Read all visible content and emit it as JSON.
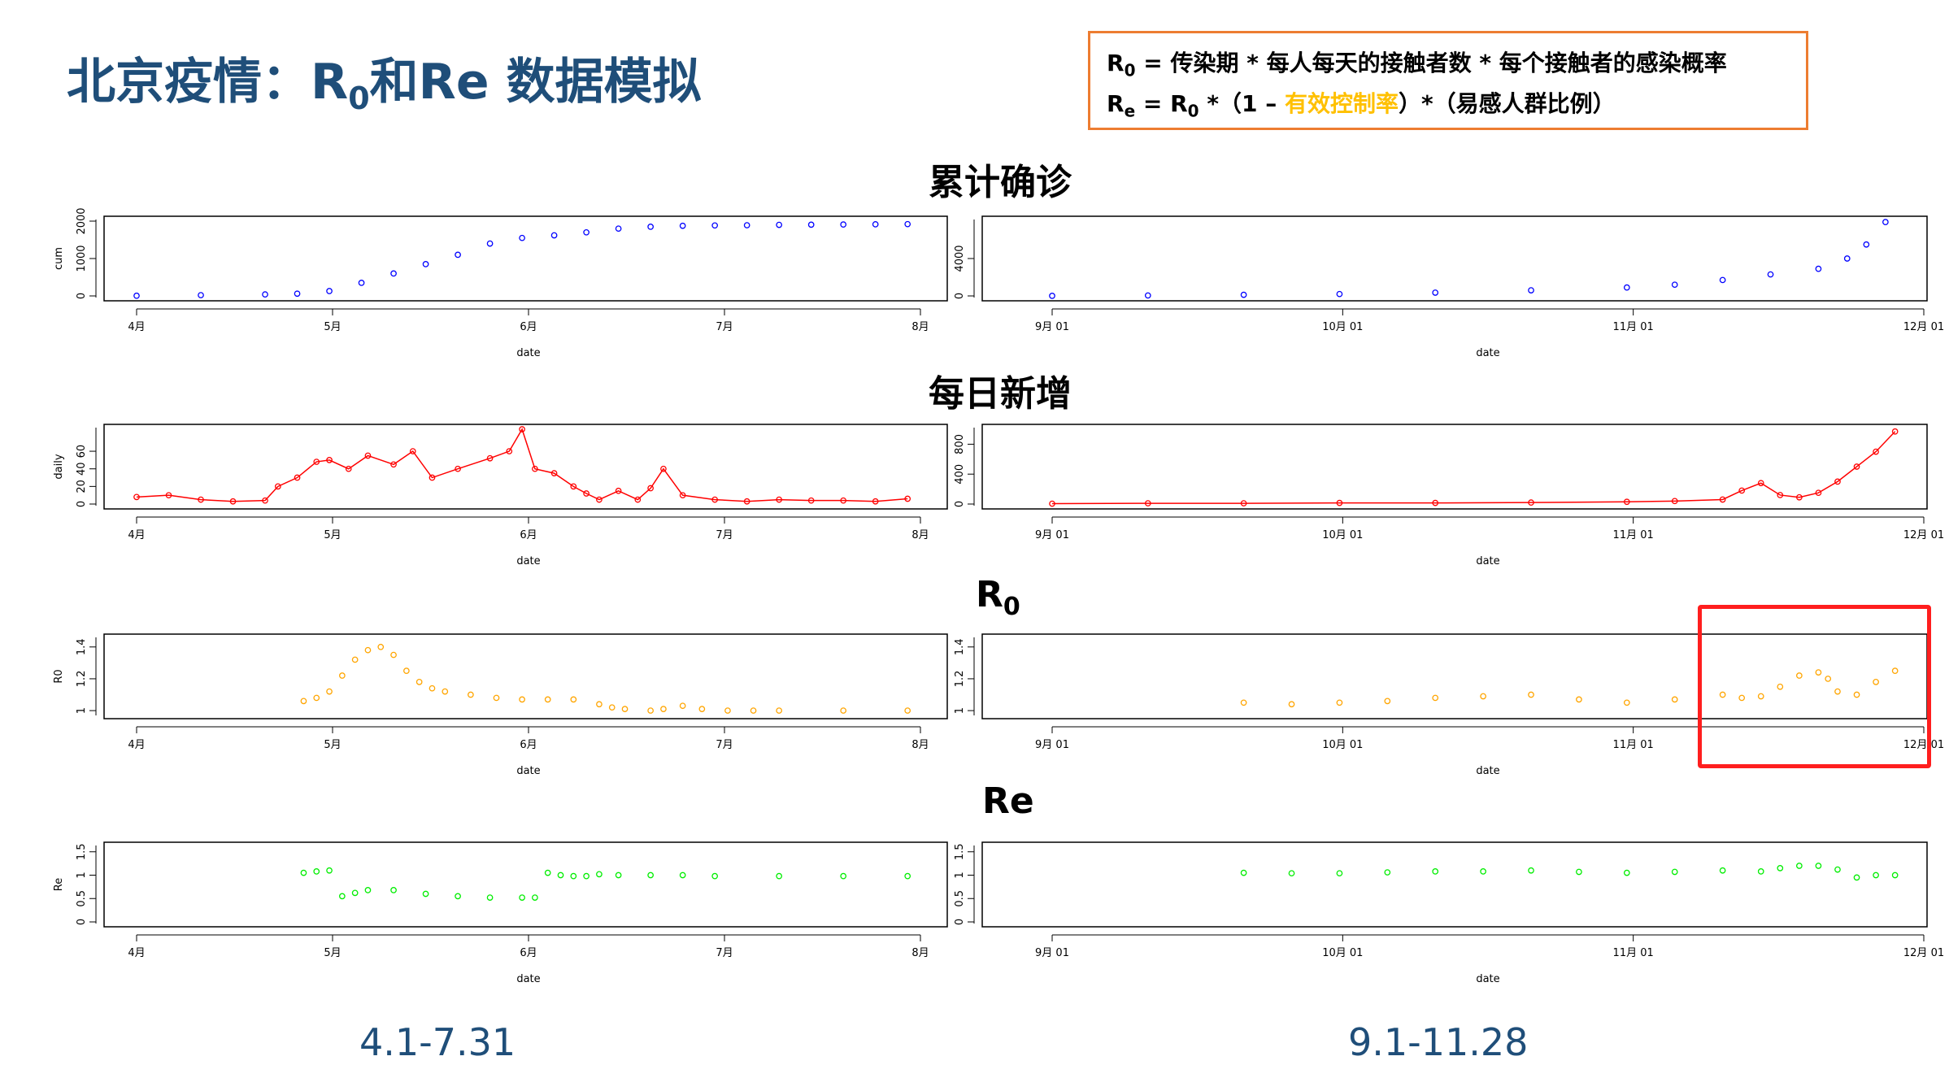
{
  "title": {
    "main": "北京疫情：R",
    "sub": "0",
    "rest": "和Re 数据模拟"
  },
  "formula": {
    "r0_label": "R",
    "r0_sub": "0",
    "r0_rhs": " = 传染期 * 每人每天的接触者数 * 每个接触者的感染概率",
    "re_label": "R",
    "re_sub": "e",
    "re_mid1": " = R",
    "re_mid_sub": "0",
    "re_mid2": " *（1 – ",
    "re_highlight": "有效控制率",
    "re_end": "）*（易感人群比例）",
    "highlight_color": "#ffc000"
  },
  "sections": {
    "cum": "累计确诊",
    "daily": "每日新增",
    "r0_main": "R",
    "r0_sub": "0",
    "re": "Re"
  },
  "periods": {
    "left": "4.1-7.31",
    "right": "9.1-11.28"
  },
  "colors": {
    "cum": "#0000ff",
    "daily": "#ff0000",
    "r0": "#ffa500",
    "re": "#00ee00",
    "highlight_box": "#ff1e1e"
  },
  "chart_data": [
    {
      "type": "scatter",
      "id": "cum-left",
      "ylabel": "cum",
      "xlabel": "date",
      "x_tick_labels": [
        "4月",
        "5月",
        "6月",
        "7月",
        "8月"
      ],
      "y_ticks": [
        0,
        1000,
        2000
      ],
      "ylim": [
        0,
        2000
      ],
      "xlim": [
        0,
        122
      ],
      "series": [
        {
          "x": [
            0,
            10,
            20,
            25,
            30,
            35,
            40,
            45,
            50,
            55,
            60,
            65,
            70,
            75,
            80,
            85,
            90,
            95,
            100,
            105,
            110,
            115,
            120
          ],
          "values": [
            5,
            20,
            40,
            60,
            130,
            350,
            600,
            850,
            1100,
            1400,
            1550,
            1620,
            1700,
            1800,
            1850,
            1875,
            1885,
            1890,
            1900,
            1905,
            1910,
            1915,
            1920
          ]
        }
      ]
    },
    {
      "type": "scatter",
      "id": "cum-right",
      "ylabel": "",
      "xlabel": "date",
      "x_tick_labels": [
        "9月 01",
        "10月 01",
        "11月 01",
        "12月 01"
      ],
      "y_ticks": [
        0,
        4000
      ],
      "ylim": [
        0,
        8000
      ],
      "xlim": [
        0,
        91
      ],
      "series": [
        {
          "x": [
            0,
            10,
            20,
            30,
            40,
            50,
            60,
            65,
            70,
            75,
            80,
            83,
            85,
            87
          ],
          "values": [
            10,
            50,
            120,
            200,
            350,
            600,
            900,
            1200,
            1700,
            2300,
            2900,
            4000,
            5500,
            7900
          ]
        }
      ]
    },
    {
      "type": "line",
      "id": "daily-left",
      "ylabel": "daily",
      "xlabel": "date",
      "x_tick_labels": [
        "4月",
        "5月",
        "6月",
        "7月",
        "8月"
      ],
      "y_ticks": [
        0,
        20,
        40,
        60
      ],
      "ylim": [
        0,
        85
      ],
      "xlim": [
        0,
        122
      ],
      "series": [
        {
          "x": [
            0,
            5,
            10,
            15,
            20,
            22,
            25,
            28,
            30,
            33,
            36,
            40,
            43,
            46,
            50,
            55,
            58,
            60,
            62,
            65,
            68,
            70,
            72,
            75,
            78,
            80,
            82,
            85,
            90,
            95,
            100,
            105,
            110,
            115,
            120
          ],
          "values": [
            8,
            10,
            5,
            3,
            4,
            20,
            30,
            48,
            50,
            40,
            55,
            45,
            60,
            30,
            40,
            52,
            60,
            85,
            40,
            35,
            20,
            12,
            5,
            15,
            5,
            18,
            40,
            10,
            5,
            3,
            5,
            4,
            4,
            3,
            6
          ]
        }
      ]
    },
    {
      "type": "line",
      "id": "daily-right",
      "ylabel": "",
      "xlabel": "date",
      "x_tick_labels": [
        "9月 01",
        "10月 01",
        "11月 01",
        "12月 01"
      ],
      "y_ticks": [
        0,
        400,
        800
      ],
      "ylim": [
        0,
        1000
      ],
      "xlim": [
        0,
        91
      ],
      "series": [
        {
          "x": [
            0,
            10,
            20,
            30,
            40,
            50,
            60,
            65,
            70,
            72,
            74,
            76,
            78,
            80,
            82,
            84,
            86,
            88
          ],
          "values": [
            5,
            10,
            10,
            15,
            15,
            20,
            30,
            40,
            60,
            180,
            280,
            120,
            90,
            150,
            300,
            500,
            700,
            970
          ]
        }
      ]
    },
    {
      "type": "scatter",
      "id": "r0-left",
      "ylabel": "R0",
      "xlabel": "date",
      "x_tick_labels": [
        "4月",
        "5月",
        "6月",
        "7月",
        "8月"
      ],
      "y_ticks": [
        1.0,
        1.2,
        1.4
      ],
      "ylim": [
        0.98,
        1.45
      ],
      "xlim": [
        0,
        122
      ],
      "series": [
        {
          "x": [
            26,
            28,
            30,
            32,
            34,
            36,
            38,
            40,
            42,
            44,
            46,
            48,
            52,
            56,
            60,
            64,
            68,
            72,
            74,
            76,
            80,
            82,
            85,
            88,
            92,
            96,
            100,
            110,
            120
          ],
          "values": [
            1.06,
            1.08,
            1.12,
            1.22,
            1.32,
            1.38,
            1.4,
            1.35,
            1.25,
            1.18,
            1.14,
            1.12,
            1.1,
            1.08,
            1.07,
            1.07,
            1.07,
            1.04,
            1.02,
            1.01,
            1.0,
            1.01,
            1.03,
            1.01,
            1.0,
            1.0,
            1.0,
            1.0,
            1.0
          ]
        }
      ]
    },
    {
      "type": "scatter",
      "id": "r0-right",
      "ylabel": "",
      "xlabel": "date",
      "x_tick_labels": [
        "9月 01",
        "10月 01",
        "11月 01",
        "12月 01"
      ],
      "y_ticks": [
        1.0,
        1.2,
        1.4
      ],
      "ylim": [
        0.98,
        1.45
      ],
      "xlim": [
        0,
        91
      ],
      "series": [
        {
          "x": [
            20,
            25,
            30,
            35,
            40,
            45,
            50,
            55,
            60,
            65,
            70,
            72,
            74,
            76,
            78,
            80,
            81,
            82,
            84,
            86,
            88
          ],
          "values": [
            1.05,
            1.04,
            1.05,
            1.06,
            1.08,
            1.09,
            1.1,
            1.07,
            1.05,
            1.07,
            1.1,
            1.08,
            1.09,
            1.15,
            1.22,
            1.24,
            1.2,
            1.12,
            1.1,
            1.18,
            1.25
          ]
        }
      ]
    },
    {
      "type": "scatter",
      "id": "re-left",
      "ylabel": "Re",
      "xlabel": "date",
      "x_tick_labels": [
        "4月",
        "5月",
        "6月",
        "7月",
        "8月"
      ],
      "y_ticks": [
        0.0,
        0.5,
        1.0,
        1.5
      ],
      "ylim": [
        0,
        1.6
      ],
      "xlim": [
        0,
        122
      ],
      "series": [
        {
          "x": [
            26,
            28,
            30,
            32,
            34,
            36,
            40,
            45,
            50,
            55,
            60,
            62,
            64,
            66,
            68,
            70,
            72,
            75,
            80,
            85,
            90,
            100,
            110,
            120
          ],
          "values": [
            1.05,
            1.08,
            1.1,
            0.55,
            0.62,
            0.68,
            0.68,
            0.6,
            0.55,
            0.52,
            0.52,
            0.52,
            1.05,
            1.0,
            0.98,
            0.98,
            1.02,
            1.0,
            1.0,
            1.0,
            0.98,
            0.98,
            0.98,
            0.98
          ]
        }
      ]
    },
    {
      "type": "scatter",
      "id": "re-right",
      "ylabel": "",
      "xlabel": "date",
      "x_tick_labels": [
        "9月 01",
        "10月 01",
        "11月 01",
        "12月 01"
      ],
      "y_ticks": [
        0.0,
        0.5,
        1.0,
        1.5
      ],
      "ylim": [
        0,
        1.6
      ],
      "xlim": [
        0,
        91
      ],
      "series": [
        {
          "x": [
            20,
            25,
            30,
            35,
            40,
            45,
            50,
            55,
            60,
            65,
            70,
            74,
            76,
            78,
            80,
            82,
            84,
            86,
            88
          ],
          "values": [
            1.05,
            1.04,
            1.04,
            1.06,
            1.08,
            1.08,
            1.1,
            1.07,
            1.05,
            1.07,
            1.1,
            1.08,
            1.15,
            1.2,
            1.2,
            1.12,
            0.95,
            1.0,
            1.0
          ]
        }
      ]
    }
  ]
}
